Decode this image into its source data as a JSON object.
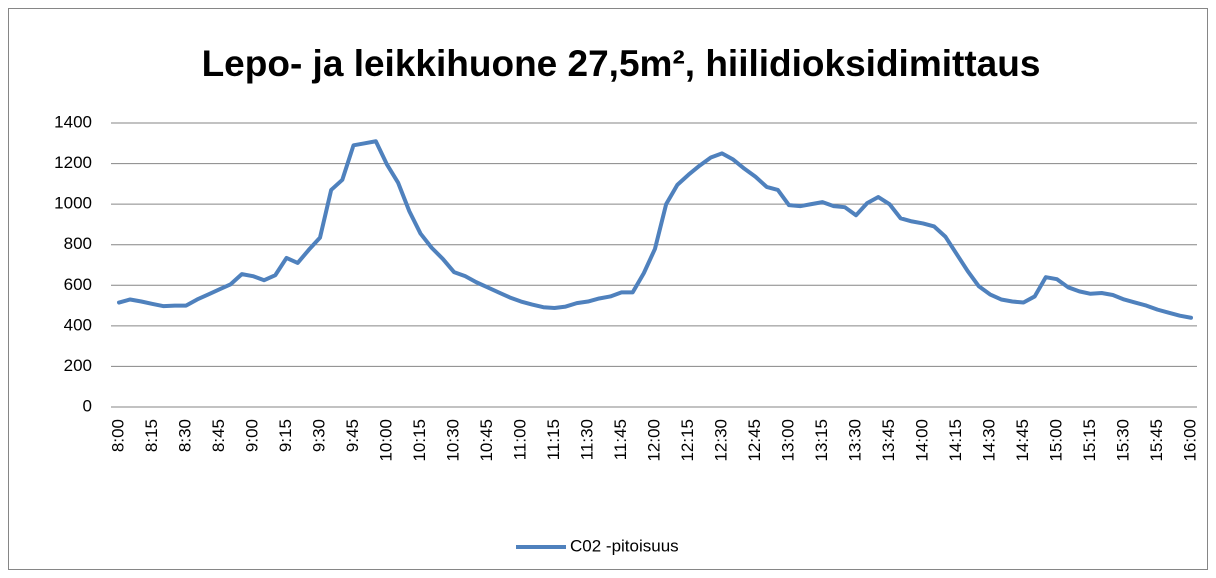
{
  "chart_data": {
    "type": "line",
    "title": "Lepo- ja leikkihuone 27,5m², hiilidioksidimittaus",
    "categories": [
      "8:00",
      null,
      null,
      "8:15",
      null,
      null,
      "8:30",
      null,
      null,
      "8:45",
      null,
      null,
      "9:00",
      null,
      null,
      "9:15",
      null,
      null,
      "9:30",
      null,
      null,
      "9:45",
      null,
      null,
      "10:00",
      null,
      null,
      "10:15",
      null,
      null,
      "10:30",
      null,
      null,
      "10:45",
      null,
      null,
      "11:00",
      null,
      null,
      "11:15",
      null,
      null,
      "11:30",
      null,
      null,
      "11:45",
      null,
      null,
      "12:00",
      null,
      null,
      "12:15",
      null,
      null,
      "12:30",
      null,
      null,
      "12:45",
      null,
      null,
      "13:00",
      null,
      null,
      "13:15",
      null,
      null,
      "13:30",
      null,
      null,
      "13:45",
      null,
      null,
      "14:00",
      null,
      null,
      "14:15",
      null,
      null,
      "14:30",
      null,
      null,
      "14:45",
      null,
      null,
      "15:00",
      null,
      null,
      "15:15",
      null,
      null,
      "15:30",
      null,
      null,
      "15:45",
      null,
      null,
      "16:00"
    ],
    "series": [
      {
        "name": "C02 -pitoisuus",
        "color": "#4f81bd",
        "values": [
          515,
          530,
          520,
          508,
          497,
          500,
          500,
          530,
          555,
          580,
          605,
          655,
          645,
          625,
          650,
          735,
          710,
          775,
          835,
          1070,
          1120,
          1290,
          1300,
          1310,
          1195,
          1105,
          965,
          855,
          785,
          730,
          665,
          645,
          615,
          590,
          565,
          540,
          520,
          505,
          492,
          488,
          495,
          512,
          520,
          535,
          545,
          565,
          565,
          660,
          780,
          1000,
          1095,
          1145,
          1190,
          1230,
          1250,
          1220,
          1175,
          1135,
          1085,
          1070,
          995,
          990,
          1000,
          1010,
          990,
          985,
          945,
          1005,
          1035,
          1000,
          930,
          915,
          905,
          890,
          840,
          755,
          670,
          595,
          555,
          530,
          520,
          515,
          545,
          640,
          630,
          590,
          570,
          558,
          562,
          552,
          530,
          515,
          500,
          480,
          465,
          450,
          440
        ]
      }
    ],
    "ylim": [
      0,
      1400
    ],
    "yticks": [
      0,
      200,
      400,
      600,
      800,
      1000,
      1200,
      1400
    ],
    "grid": true,
    "legend": "bottom"
  }
}
